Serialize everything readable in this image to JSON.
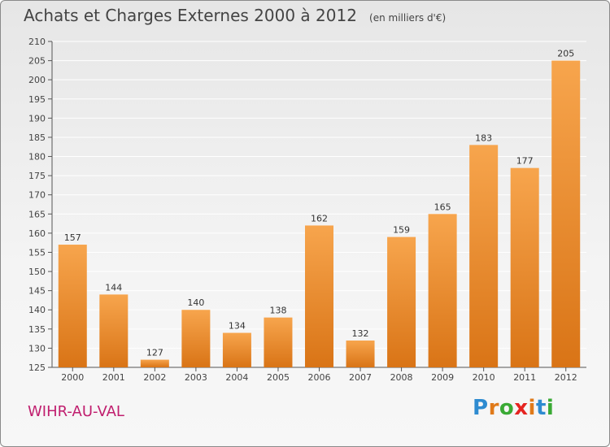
{
  "title": "Achats et Charges Externes 2000 à 2012",
  "unit": "(en milliers d'€)",
  "commune": "WIHR-AU-VAL",
  "logo": "Proxiti",
  "colors": {
    "bar_light": "#f7a54d",
    "bar_dark": "#d97416",
    "commune": "#c01e6e",
    "axis": "#555555",
    "grid": "#ffffff"
  },
  "chart_data": {
    "type": "bar",
    "categories": [
      "2000",
      "2001",
      "2002",
      "2003",
      "2004",
      "2005",
      "2006",
      "2007",
      "2008",
      "2009",
      "2010",
      "2011",
      "2012"
    ],
    "values": [
      157,
      144,
      127,
      140,
      134,
      138,
      162,
      132,
      159,
      165,
      183,
      177,
      205
    ],
    "title": "Achats et Charges Externes 2000 à 2012",
    "xlabel": "",
    "ylabel": "",
    "ylim": [
      125,
      210
    ],
    "yticks": [
      125,
      130,
      135,
      140,
      145,
      150,
      155,
      160,
      165,
      170,
      175,
      180,
      185,
      190,
      195,
      200,
      205,
      210
    ],
    "grid": true,
    "legend": "none"
  }
}
